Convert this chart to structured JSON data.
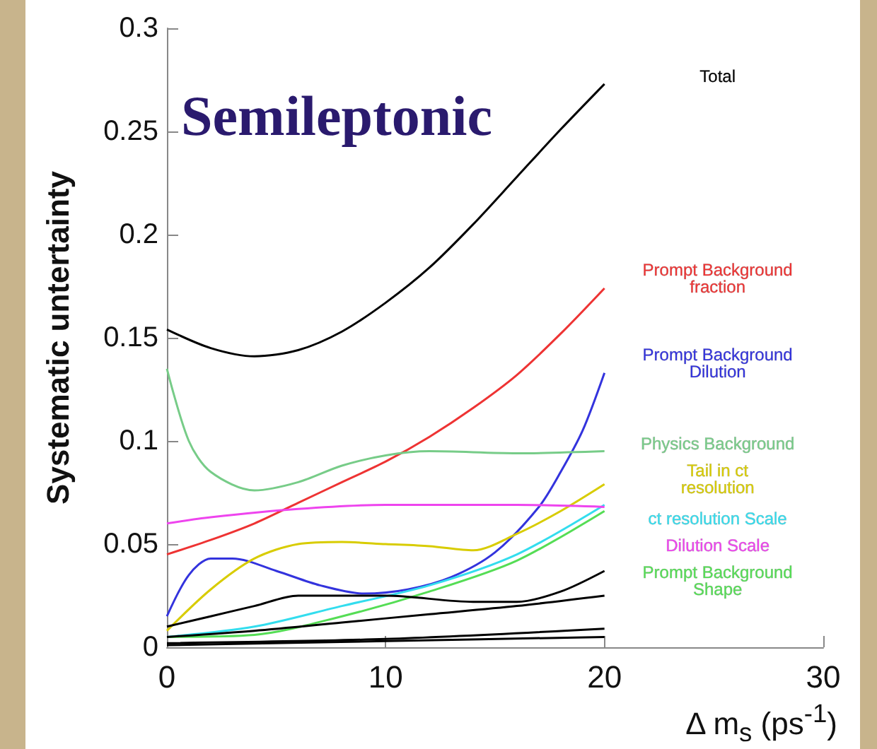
{
  "chart_data": {
    "type": "line",
    "title": "Semileptonic",
    "xlabel": "Δ m$_{s}$ (ps$^{-1}$)",
    "ylabel": "Systematic untertainty",
    "xlim": [
      0,
      30
    ],
    "xticks": [
      0,
      10,
      20,
      30
    ],
    "ylim": [
      0,
      0.3
    ],
    "yticks": [
      0,
      0.05,
      0.1,
      0.15,
      0.2,
      0.25,
      0.3
    ],
    "grid": false,
    "legend": false,
    "marker": "none",
    "line_style": "solid",
    "series": [
      {
        "name": "Total",
        "color": "#000000",
        "x": [
          0,
          2,
          4,
          6,
          8,
          10,
          12,
          14,
          16,
          18,
          20
        ],
        "values": [
          0.154,
          0.145,
          0.141,
          0.144,
          0.153,
          0.167,
          0.184,
          0.205,
          0.228,
          0.251,
          0.273
        ]
      },
      {
        "name": "Prompt Background fraction",
        "color": "#ee3333",
        "x": [
          0,
          2,
          4,
          6,
          8,
          10,
          12,
          14,
          16,
          18,
          20
        ],
        "values": [
          0.045,
          0.052,
          0.06,
          0.07,
          0.08,
          0.09,
          0.102,
          0.116,
          0.132,
          0.152,
          0.174
        ]
      },
      {
        "name": "Prompt Background Dilution",
        "color": "#3333dd",
        "x": [
          0,
          1,
          2,
          3,
          5,
          7,
          9,
          11,
          13,
          15,
          17,
          18,
          19,
          20
        ],
        "values": [
          0.015,
          0.035,
          0.043,
          0.043,
          0.037,
          0.03,
          0.026,
          0.028,
          0.034,
          0.046,
          0.068,
          0.085,
          0.105,
          0.133
        ]
      },
      {
        "name": "Physics Background",
        "color": "#77cc88",
        "x": [
          0,
          1,
          2,
          4,
          6,
          8,
          10,
          12,
          16,
          20
        ],
        "values": [
          0.135,
          0.1,
          0.085,
          0.076,
          0.08,
          0.088,
          0.093,
          0.095,
          0.094,
          0.095
        ]
      },
      {
        "name": "Tail in ct resolution",
        "color": "#d8cc00",
        "x": [
          0,
          2,
          4,
          6,
          8,
          10,
          12,
          14,
          16,
          18,
          20
        ],
        "values": [
          0.008,
          0.028,
          0.043,
          0.05,
          0.051,
          0.05,
          0.049,
          0.047,
          0.055,
          0.066,
          0.079
        ]
      },
      {
        "name": "ct resolution Scale",
        "color": "#33ddee",
        "x": [
          0,
          4,
          8,
          12,
          16,
          20
        ],
        "values": [
          0.005,
          0.01,
          0.02,
          0.03,
          0.045,
          0.069
        ]
      },
      {
        "name": "Dilution Scale",
        "color": "#ee44ee",
        "x": [
          0,
          2,
          6,
          10,
          16,
          20
        ],
        "values": [
          0.06,
          0.063,
          0.067,
          0.069,
          0.069,
          0.068
        ]
      },
      {
        "name": "Prompt Background Shape",
        "color": "#55dd55",
        "x": [
          0,
          4,
          8,
          12,
          16,
          20
        ],
        "values": [
          0.005,
          0.006,
          0.015,
          0.027,
          0.042,
          0.066
        ]
      },
      {
        "color": "#000000",
        "x": [
          0,
          2,
          4,
          6,
          10,
          14,
          16,
          18,
          20
        ],
        "values": [
          0.01,
          0.015,
          0.02,
          0.025,
          0.025,
          0.022,
          0.022,
          0.027,
          0.037
        ]
      },
      {
        "color": "#000000",
        "x": [
          0,
          4,
          8,
          12,
          16,
          20
        ],
        "values": [
          0.005,
          0.008,
          0.012,
          0.016,
          0.02,
          0.025
        ]
      },
      {
        "color": "#000000",
        "x": [
          0,
          10,
          20
        ],
        "values": [
          0.002,
          0.004,
          0.009
        ]
      },
      {
        "color": "#000000",
        "x": [
          0,
          10,
          20
        ],
        "values": [
          0.001,
          0.003,
          0.005
        ]
      }
    ]
  }
}
